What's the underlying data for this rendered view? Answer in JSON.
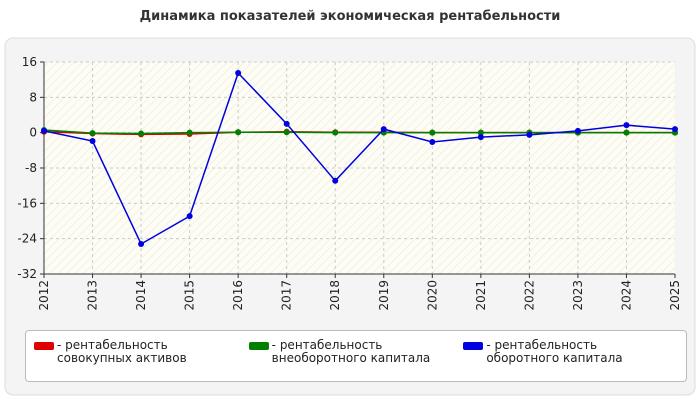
{
  "chart_data": {
    "type": "line",
    "title": "Динамика показателей экономическая рентабельности",
    "categories": [
      "2012",
      "2013",
      "2014",
      "2015",
      "2016",
      "2017",
      "2018",
      "2019",
      "2020",
      "2021",
      "2022",
      "2023",
      "2024",
      "2025"
    ],
    "series": [
      {
        "name": "- рентабельность совокупных активов",
        "color": "#e00000",
        "values": [
          0.2,
          -0.2,
          -0.4,
          -0.3,
          0.1,
          0.2,
          0.1,
          0.1,
          0.0,
          0.0,
          0.0,
          0.0,
          0.0,
          0.0
        ]
      },
      {
        "name": "- рентабельность внеоборотного капитала",
        "color": "#008000",
        "values": [
          0.6,
          -0.1,
          -0.2,
          0.0,
          0.1,
          0.1,
          0.0,
          0.0,
          0.0,
          0.0,
          0.0,
          0.0,
          0.0,
          0.0
        ]
      },
      {
        "name": "- рентабельность оборотного капитала",
        "color": "#0000e0",
        "values": [
          0.4,
          -1.9,
          -25.2,
          -18.9,
          13.5,
          2.0,
          -10.9,
          0.8,
          -2.1,
          -1.0,
          -0.5,
          0.4,
          1.7,
          0.8
        ]
      }
    ],
    "ylim": [
      -32,
      16
    ],
    "yticks": [
      -32,
      -24,
      -16,
      -8,
      0,
      8,
      16
    ],
    "grid": true
  }
}
